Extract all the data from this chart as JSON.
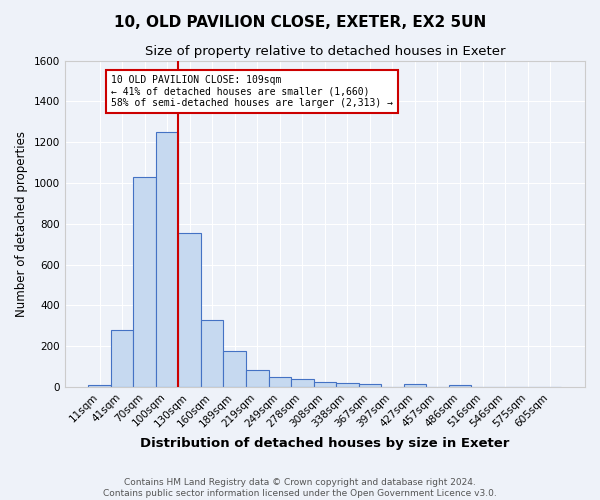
{
  "title1": "10, OLD PAVILION CLOSE, EXETER, EX2 5UN",
  "title2": "Size of property relative to detached houses in Exeter",
  "xlabel": "Distribution of detached houses by size in Exeter",
  "ylabel": "Number of detached properties",
  "bar_labels": [
    "11sqm",
    "41sqm",
    "70sqm",
    "100sqm",
    "130sqm",
    "160sqm",
    "189sqm",
    "219sqm",
    "249sqm",
    "278sqm",
    "308sqm",
    "338sqm",
    "367sqm",
    "397sqm",
    "427sqm",
    "457sqm",
    "486sqm",
    "516sqm",
    "546sqm",
    "575sqm",
    "605sqm"
  ],
  "bar_values": [
    10,
    280,
    1030,
    1250,
    755,
    330,
    175,
    85,
    47,
    37,
    25,
    18,
    12,
    0,
    12,
    0,
    10,
    0,
    0,
    0,
    0
  ],
  "bar_color": "#c6d9f0",
  "bar_edge_color": "#4472c4",
  "vline_x_index": 3,
  "vline_color": "#cc0000",
  "annotation_text": "10 OLD PAVILION CLOSE: 109sqm\n← 41% of detached houses are smaller (1,660)\n58% of semi-detached houses are larger (2,313) →",
  "annotation_box_color": "white",
  "annotation_box_edge_color": "#cc0000",
  "ylim": [
    0,
    1600
  ],
  "yticks": [
    0,
    200,
    400,
    600,
    800,
    1000,
    1200,
    1400,
    1600
  ],
  "bg_color": "#eef2f9",
  "grid_color": "white",
  "footer_text1": "Contains HM Land Registry data © Crown copyright and database right 2024.",
  "footer_text2": "Contains public sector information licensed under the Open Government Licence v3.0.",
  "title1_fontsize": 11,
  "title2_fontsize": 9.5,
  "xlabel_fontsize": 9.5,
  "ylabel_fontsize": 8.5,
  "tick_fontsize": 7.5,
  "footer_fontsize": 6.5
}
